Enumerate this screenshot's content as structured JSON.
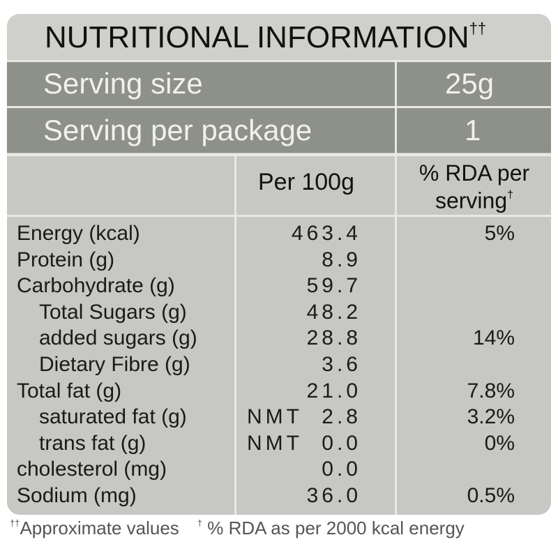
{
  "label": {
    "title": "NUTRITIONAL INFORMATION",
    "title_mark": "††",
    "serving": [
      {
        "label": "Serving size",
        "value": "25g"
      },
      {
        "label": "Serving per package",
        "value": "1"
      }
    ],
    "header": {
      "per100": "Per 100g",
      "rda_line1": "% RDA per",
      "rda_line2": "serving",
      "rda_mark": "†"
    },
    "rows": [
      {
        "name": "Energy (kcal)",
        "value": "463.4",
        "rda": "5%"
      },
      {
        "name": "Protein (g)",
        "value": "8.9"
      },
      {
        "name": "Carbohydrate (g)",
        "value": "59.7"
      },
      {
        "name": "Total Sugars (g)",
        "value": "48.2"
      },
      {
        "name": "added sugars (g)",
        "value": "28.8",
        "rda": "14%"
      },
      {
        "name": "Dietary Fibre (g)",
        "value": "3.6"
      },
      {
        "name": "Total fat (g)",
        "value": "21.0",
        "rda": "7.8%"
      },
      {
        "name": "saturated fat (g)",
        "prefix": "NMT",
        "value": "2.8",
        "rda": "3.2%"
      },
      {
        "name": "trans fat (g)",
        "prefix": "NMT",
        "value": "0.0",
        "rda": "0%"
      },
      {
        "name": "cholesterol (mg)",
        "value": "0.0"
      },
      {
        "name": "Sodium (mg)",
        "value": "36.0",
        "rda": "0.5%"
      }
    ],
    "footnotes": [
      {
        "mark": "††",
        "text": "Approximate values"
      },
      {
        "mark": "†",
        "text": " % RDA as per 2000 kcal energy"
      }
    ]
  }
}
